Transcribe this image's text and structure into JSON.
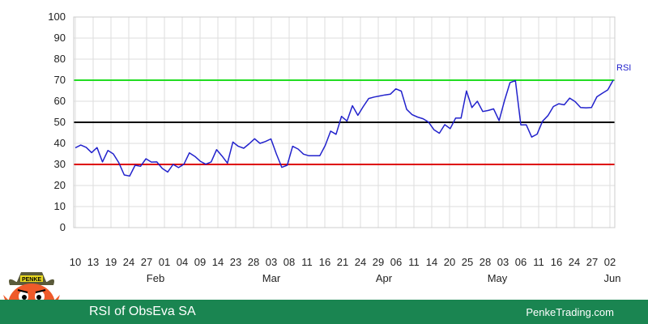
{
  "footer": {
    "title": "RSI of ObsEva SA",
    "site": "PenkeTrading.com"
  },
  "mascot": {
    "badge_text": "PENKE"
  },
  "colors": {
    "rsi_line": "#2222cc",
    "overbought": "#22dd22",
    "midline": "#000000",
    "oversold": "#dd0000",
    "footer_bg": "#1a8551",
    "grid": "#dddddd"
  },
  "chart_data": {
    "type": "line",
    "title": "",
    "xlabel": "",
    "ylabel": "",
    "ylim": [
      0,
      100
    ],
    "y_ticks": [
      0,
      10,
      20,
      30,
      40,
      50,
      60,
      70,
      80,
      90,
      100
    ],
    "grid": true,
    "x_tick_labels": [
      "10",
      "13",
      "19",
      "24",
      "27",
      "01",
      "04",
      "09",
      "14",
      "23",
      "28",
      "03",
      "08",
      "11",
      "16",
      "21",
      "24",
      "29",
      "06",
      "11",
      "14",
      "20",
      "25",
      "28",
      "03",
      "06",
      "11",
      "16",
      "24",
      "27",
      "02"
    ],
    "month_labels": [
      "Feb",
      "Mar",
      "Apr",
      "May",
      "Jun"
    ],
    "reference_lines": [
      {
        "value": 70,
        "color": "#22dd22"
      },
      {
        "value": 50,
        "color": "#000000"
      },
      {
        "value": 30,
        "color": "#dd0000"
      }
    ],
    "series": [
      {
        "name": "RSI",
        "values": [
          37.9,
          39.2,
          38.1,
          35.6,
          38.0,
          31.2,
          36.6,
          35.0,
          30.8,
          25.0,
          24.5,
          29.6,
          29.1,
          32.7,
          31.1,
          31.2,
          28.1,
          26.4,
          30.0,
          28.5,
          30.1,
          35.5,
          33.8,
          31.5,
          30.1,
          31.2,
          37.0,
          34.0,
          30.6,
          40.6,
          38.6,
          37.7,
          39.8,
          42.2,
          40.0,
          40.9,
          42.1,
          35.0,
          28.6,
          29.6,
          38.6,
          37.3,
          34.9,
          34.1,
          34.1,
          34.1,
          39.0,
          45.8,
          44.3,
          52.8,
          50.6,
          57.9,
          53.3,
          57.5,
          61.3,
          62.0,
          62.5,
          63.0,
          63.4,
          65.9,
          64.8,
          56.1,
          53.6,
          52.5,
          51.7,
          50.1,
          46.5,
          44.8,
          48.9,
          47.0,
          52.0,
          52.0,
          64.9,
          57.0,
          60.0,
          55.1,
          55.6,
          56.4,
          50.8,
          60.4,
          68.8,
          69.8,
          48.8,
          48.8,
          43.0,
          44.4,
          50.5,
          53.2,
          57.5,
          58.8,
          58.3,
          61.5,
          59.8,
          57.0,
          56.9,
          57.0,
          62.1,
          63.8,
          65.4,
          70.0
        ]
      }
    ]
  }
}
